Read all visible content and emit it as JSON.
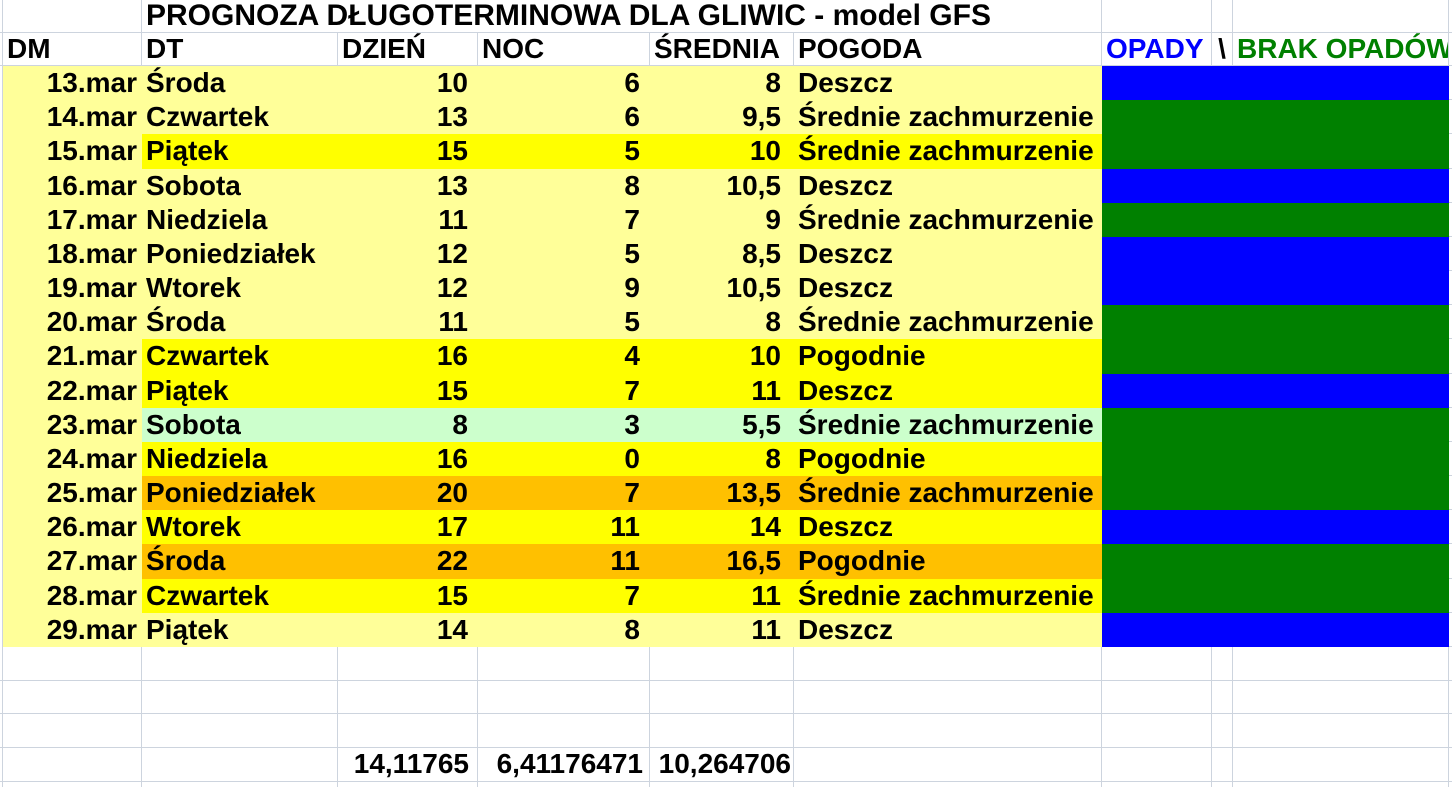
{
  "title": "PROGNOZA DŁUGOTERMINOWA DLA GLIWIC - model GFS",
  "header": {
    "dm": "DM",
    "dt": "DT",
    "dzien": "DZIEŃ",
    "noc": "NOC",
    "srednia": "ŚREDNIA",
    "pogoda": "POGODA",
    "opady": "OPADY",
    "separator": "\\",
    "brak_opadow": "BRAK OPADÓW"
  },
  "colors": {
    "pale": "#FFFF99",
    "yellow": "#FFFF00",
    "orange": "#FFC000",
    "mint": "#CCFFCC",
    "opady": "#0000FF",
    "brak_opadow": "#008000",
    "gridline": "#CDD4DE"
  },
  "rows": [
    {
      "date": "13.mar",
      "day": "Środa",
      "day_temp": "10",
      "night_temp": "6",
      "avg_temp": "8",
      "weather": "Deszcz",
      "highlight": "pale",
      "precip": "opady"
    },
    {
      "date": "14.mar",
      "day": "Czwartek",
      "day_temp": "13",
      "night_temp": "6",
      "avg_temp": "9,5",
      "weather": "Średnie zachmurzenie",
      "highlight": "pale",
      "precip": "brak_opadow"
    },
    {
      "date": "15.mar",
      "day": "Piątek",
      "day_temp": "15",
      "night_temp": "5",
      "avg_temp": "10",
      "weather": "Średnie zachmurzenie",
      "highlight": "yellow",
      "precip": "brak_opadow"
    },
    {
      "date": "16.mar",
      "day": "Sobota",
      "day_temp": "13",
      "night_temp": "8",
      "avg_temp": "10,5",
      "weather": "Deszcz",
      "highlight": "pale",
      "precip": "opady"
    },
    {
      "date": "17.mar",
      "day": "Niedziela",
      "day_temp": "11",
      "night_temp": "7",
      "avg_temp": "9",
      "weather": "Średnie zachmurzenie",
      "highlight": "pale",
      "precip": "brak_opadow"
    },
    {
      "date": "18.mar",
      "day": "Poniedziałek",
      "day_temp": "12",
      "night_temp": "5",
      "avg_temp": "8,5",
      "weather": "Deszcz",
      "highlight": "pale",
      "precip": "opady"
    },
    {
      "date": "19.mar",
      "day": "Wtorek",
      "day_temp": "12",
      "night_temp": "9",
      "avg_temp": "10,5",
      "weather": "Deszcz",
      "highlight": "pale",
      "precip": "opady"
    },
    {
      "date": "20.mar",
      "day": "Środa",
      "day_temp": "11",
      "night_temp": "5",
      "avg_temp": "8",
      "weather": "Średnie zachmurzenie",
      "highlight": "pale",
      "precip": "brak_opadow"
    },
    {
      "date": "21.mar",
      "day": "Czwartek",
      "day_temp": "16",
      "night_temp": "4",
      "avg_temp": "10",
      "weather": "Pogodnie",
      "highlight": "yellow",
      "precip": "brak_opadow"
    },
    {
      "date": "22.mar",
      "day": "Piątek",
      "day_temp": "15",
      "night_temp": "7",
      "avg_temp": "11",
      "weather": "Deszcz",
      "highlight": "yellow",
      "precip": "opady"
    },
    {
      "date": "23.mar",
      "day": "Sobota",
      "day_temp": "8",
      "night_temp": "3",
      "avg_temp": "5,5",
      "weather": "Średnie zachmurzenie",
      "highlight": "mint",
      "precip": "brak_opadow"
    },
    {
      "date": "24.mar",
      "day": "Niedziela",
      "day_temp": "16",
      "night_temp": "0",
      "avg_temp": "8",
      "weather": "Pogodnie",
      "highlight": "yellow",
      "precip": "brak_opadow"
    },
    {
      "date": "25.mar",
      "day": "Poniedziałek",
      "day_temp": "20",
      "night_temp": "7",
      "avg_temp": "13,5",
      "weather": "Średnie zachmurzenie",
      "highlight": "orange",
      "precip": "brak_opadow"
    },
    {
      "date": "26.mar",
      "day": "Wtorek",
      "day_temp": "17",
      "night_temp": "11",
      "avg_temp": "14",
      "weather": "Deszcz",
      "highlight": "yellow",
      "precip": "opady"
    },
    {
      "date": "27.mar",
      "day": "Środa",
      "day_temp": "22",
      "night_temp": "11",
      "avg_temp": "16,5",
      "weather": "Pogodnie",
      "highlight": "orange",
      "precip": "brak_opadow"
    },
    {
      "date": "28.mar",
      "day": "Czwartek",
      "day_temp": "15",
      "night_temp": "7",
      "avg_temp": "11",
      "weather": "Średnie zachmurzenie",
      "highlight": "yellow",
      "precip": "brak_opadow"
    },
    {
      "date": "29.mar",
      "day": "Piątek",
      "day_temp": "14",
      "night_temp": "8",
      "avg_temp": "11",
      "weather": "Deszcz",
      "highlight": "pale",
      "precip": "opady"
    }
  ],
  "summary": {
    "day_avg": "14,11765",
    "night_avg": "6,41176471",
    "avg_avg": "10,264706"
  }
}
